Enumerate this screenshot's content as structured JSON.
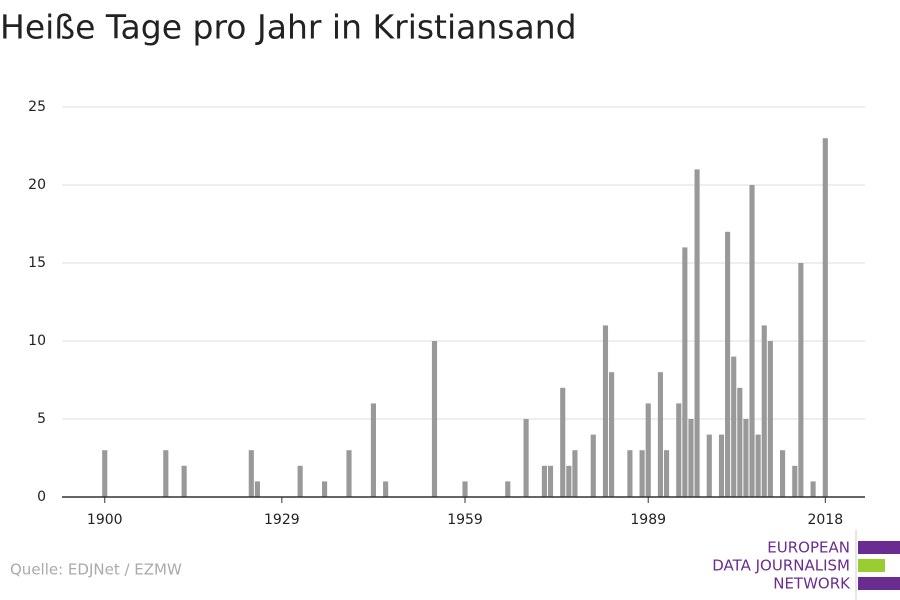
{
  "chart_data": {
    "type": "bar",
    "title": "Heiße Tage pro Jahr in Kristiansand",
    "x": [
      1900,
      1910,
      1913,
      1924,
      1925,
      1932,
      1936,
      1940,
      1944,
      1946,
      1954,
      1959,
      1966,
      1969,
      1972,
      1973,
      1975,
      1976,
      1977,
      1980,
      1982,
      1983,
      1986,
      1988,
      1989,
      1991,
      1992,
      1994,
      1995,
      1996,
      1997,
      1999,
      2001,
      2002,
      2003,
      2004,
      2005,
      2006,
      2007,
      2008,
      2009,
      2011,
      2013,
      2014,
      2016,
      2018
    ],
    "values": [
      3,
      3,
      2,
      3,
      1,
      2,
      1,
      3,
      6,
      1,
      10,
      1,
      1,
      5,
      2,
      2,
      7,
      2,
      3,
      4,
      11,
      8,
      3,
      3,
      6,
      8,
      3,
      6,
      16,
      5,
      21,
      4,
      4,
      17,
      9,
      7,
      5,
      20,
      4,
      11,
      10,
      3,
      2,
      15,
      1,
      23
    ],
    "color": "#999999",
    "xlim": [
      1893,
      2024.5
    ],
    "xticks": [
      1900,
      1929,
      1959,
      1989,
      2018
    ],
    "ylim": [
      0,
      25
    ],
    "yticks": [
      0,
      5,
      10,
      15,
      20,
      25
    ],
    "grid": true
  },
  "source": "Quelle: EDJNet / EZMW",
  "logo": [
    "EUROPEAN",
    "DATA JOURNALISM",
    "NETWORK"
  ]
}
